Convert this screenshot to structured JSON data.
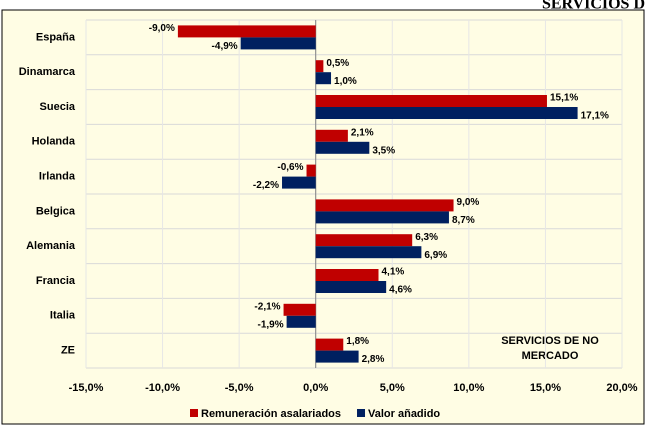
{
  "chart_data": {
    "type": "bar",
    "orientation": "horizontal",
    "title": "SERVICIOS D",
    "annotation": [
      "SERVICIOS DE NO",
      "MERCADO"
    ],
    "categories": [
      "España",
      "Dinamarca",
      "Suecia",
      "Holanda",
      "Irlanda",
      "Belgica",
      "Alemania",
      "Francia",
      "Italia",
      "ZE"
    ],
    "series": [
      {
        "name": "Remuneración asalariados",
        "color": "#c00000",
        "values": [
          -9.0,
          0.5,
          15.1,
          2.1,
          -0.6,
          9.0,
          6.3,
          4.1,
          -2.1,
          1.8
        ],
        "value_labels": [
          "-9,0%",
          "0,5%",
          "15,1%",
          "2,1%",
          "-0,6%",
          "9,0%",
          "6,3%",
          "4,1%",
          "-2,1%",
          "1,8%"
        ]
      },
      {
        "name": "Valor añadido",
        "color": "#002060",
        "values": [
          -4.9,
          1.0,
          17.1,
          3.5,
          -2.2,
          8.7,
          6.9,
          4.6,
          -1.9,
          2.8
        ],
        "value_labels": [
          "-4,9%",
          "1,0%",
          "17,1%",
          "3,5%",
          "-2,2%",
          "8,7%",
          "6,9%",
          "4,6%",
          "-1,9%",
          "2,8%"
        ]
      }
    ],
    "xlim": [
      -15,
      20
    ],
    "xticks": [
      {
        "value": -15,
        "label": "-15,0%"
      },
      {
        "value": -10,
        "label": "-10,0%"
      },
      {
        "value": -5,
        "label": "-5,0%"
      },
      {
        "value": 0,
        "label": "0,0%"
      },
      {
        "value": 5,
        "label": "5,0%"
      },
      {
        "value": 10,
        "label": "10,0%"
      },
      {
        "value": 15,
        "label": "15,0%"
      },
      {
        "value": 20,
        "label": "20,0%"
      }
    ],
    "grid": true
  }
}
